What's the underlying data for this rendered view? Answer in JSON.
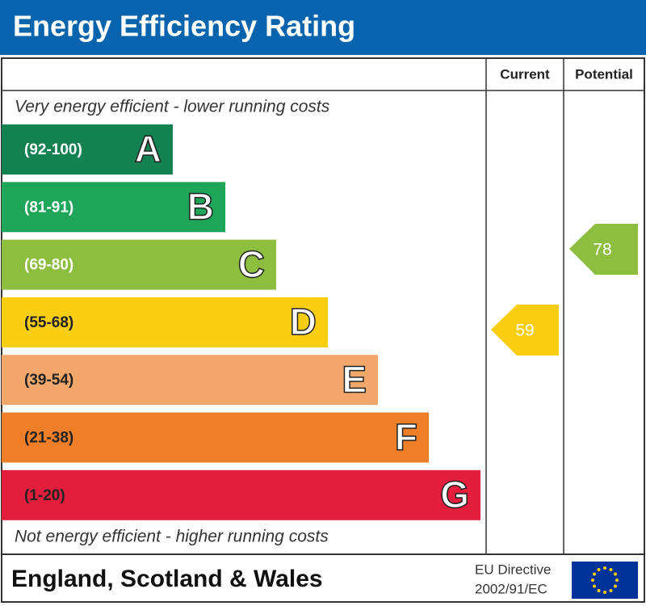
{
  "title": "Energy Efficiency Rating",
  "columns": {
    "current": "Current",
    "potential": "Potential"
  },
  "top_note": "Very energy efficient - lower running costs",
  "bottom_note": "Not energy efficient - higher running costs",
  "bands": [
    {
      "range": "(92-100)",
      "letter": "A",
      "color": "#138152"
    },
    {
      "range": "(81-91)",
      "letter": "B",
      "color": "#1ea55a"
    },
    {
      "range": "(69-80)",
      "letter": "C",
      "color": "#8dbe3f"
    },
    {
      "range": "(55-68)",
      "letter": "D",
      "color": "#f8cd12"
    },
    {
      "range": "(39-54)",
      "letter": "E",
      "color": "#f2a86b"
    },
    {
      "range": "(21-38)",
      "letter": "F",
      "color": "#ee7f28"
    },
    {
      "range": "(1-20)",
      "letter": "G",
      "color": "#e31d3c"
    }
  ],
  "current": {
    "value": 59,
    "color": "#f8cd12"
  },
  "potential": {
    "value": 78,
    "color": "#8dbe3f"
  },
  "footer": {
    "region": "England, Scotland & Wales",
    "directive_line1": "EU Directive",
    "directive_line2": "2002/91/EC"
  }
}
